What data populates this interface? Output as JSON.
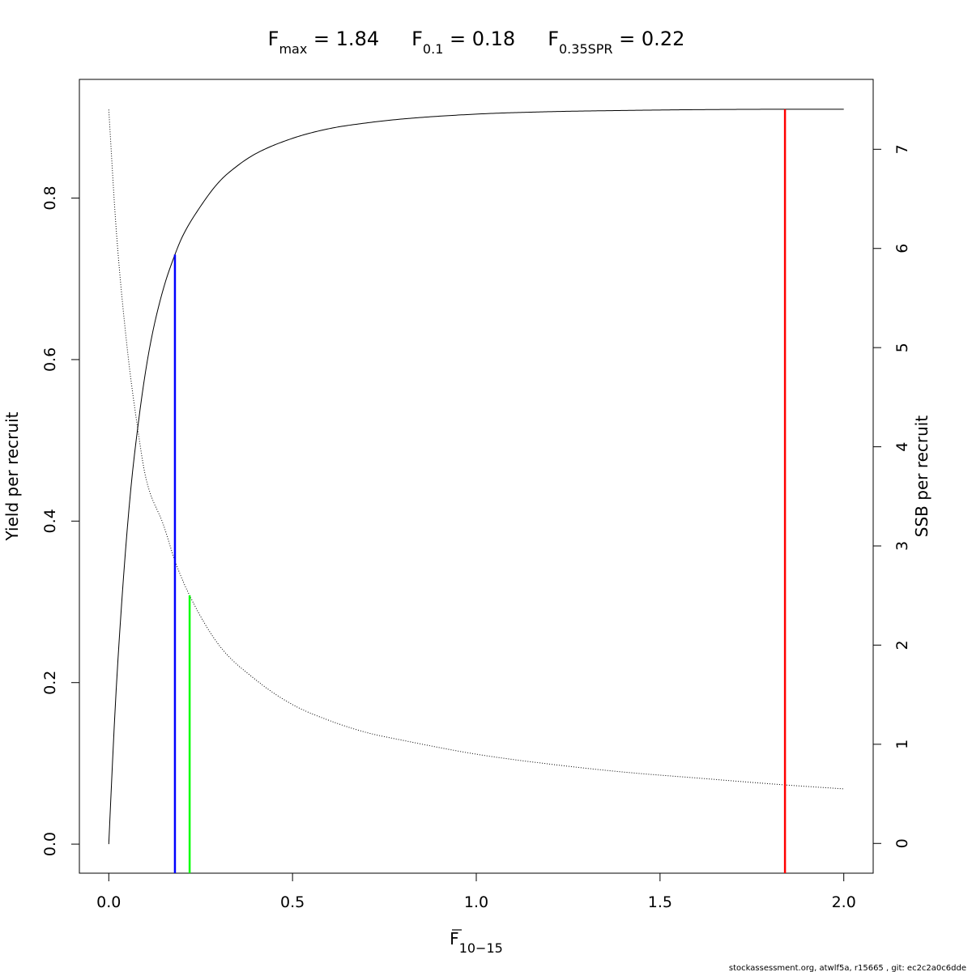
{
  "chart_data": {
    "type": "line",
    "title_parts": [
      {
        "main": "F",
        "sub": "max",
        "rest": " = 1.84"
      },
      {
        "main": "F",
        "sub": "0.1",
        "rest": " = 0.18"
      },
      {
        "main": "F",
        "sub": "0.35SPR",
        "rest": " = 0.22"
      }
    ],
    "xlabel": {
      "main": "F",
      "sub": "10−15",
      "overline": true
    },
    "ylabel_left": "Yield per recruit",
    "ylabel_right": "SSB per recruit",
    "xlim": [
      -0.08,
      2.08
    ],
    "ylim_left": [
      -0.036,
      0.947
    ],
    "ylim_right": [
      -0.3,
      7.705
    ],
    "x_ticks": [
      0.0,
      0.5,
      1.0,
      1.5,
      2.0
    ],
    "x_tick_labels": [
      "0.0",
      "0.5",
      "1.0",
      "1.5",
      "2.0"
    ],
    "y_left_ticks": [
      0.0,
      0.2,
      0.4,
      0.6,
      0.8
    ],
    "y_left_tick_labels": [
      "0.0",
      "0.2",
      "0.4",
      "0.6",
      "0.8"
    ],
    "y_right_ticks": [
      0,
      1,
      2,
      3,
      4,
      5,
      6,
      7
    ],
    "y_right_tick_labels": [
      "0",
      "1",
      "2",
      "3",
      "4",
      "5",
      "6",
      "7"
    ],
    "series": [
      {
        "axis": "left",
        "style": "solid",
        "color": "#000000",
        "x": [
          0,
          0.01,
          0.02,
          0.04,
          0.06,
          0.08,
          0.1,
          0.12,
          0.15,
          0.18,
          0.2,
          0.25,
          0.3,
          0.35,
          0.4,
          0.5,
          0.6,
          0.7,
          0.8,
          1.0,
          1.2,
          1.4,
          1.6,
          1.84,
          2.0
        ],
        "y": [
          0.0,
          0.1,
          0.19,
          0.33,
          0.44,
          0.52,
          0.585,
          0.635,
          0.69,
          0.73,
          0.752,
          0.79,
          0.82,
          0.84,
          0.855,
          0.874,
          0.886,
          0.893,
          0.898,
          0.904,
          0.907,
          0.9085,
          0.9095,
          0.91,
          0.91
        ]
      },
      {
        "axis": "right",
        "style": "dotted",
        "color": "#000000",
        "x": [
          0,
          0.02,
          0.05,
          0.08,
          0.1,
          0.15,
          0.18,
          0.22,
          0.3,
          0.4,
          0.5,
          0.6,
          0.7,
          0.8,
          1.0,
          1.2,
          1.4,
          1.6,
          1.84,
          2.0
        ],
        "y": [
          7.4,
          6.2,
          5.0,
          4.15,
          3.7,
          3.2,
          2.85,
          2.5,
          2.0,
          1.65,
          1.4,
          1.24,
          1.12,
          1.04,
          0.9,
          0.8,
          0.72,
          0.66,
          0.59,
          0.55
        ]
      }
    ],
    "reference_lines": [
      {
        "x": 0.18,
        "y_top": 0.73,
        "color": "#0000ff"
      },
      {
        "x": 0.22,
        "y_top": 0.308,
        "color": "#00ff00"
      },
      {
        "x": 1.84,
        "y_top": 0.91,
        "color": "#ff0000"
      }
    ],
    "grid": false,
    "legend": "none"
  },
  "footer": "stockassessment.org, atwlf5a, r15665 , git: ec2c2a0c6dde"
}
